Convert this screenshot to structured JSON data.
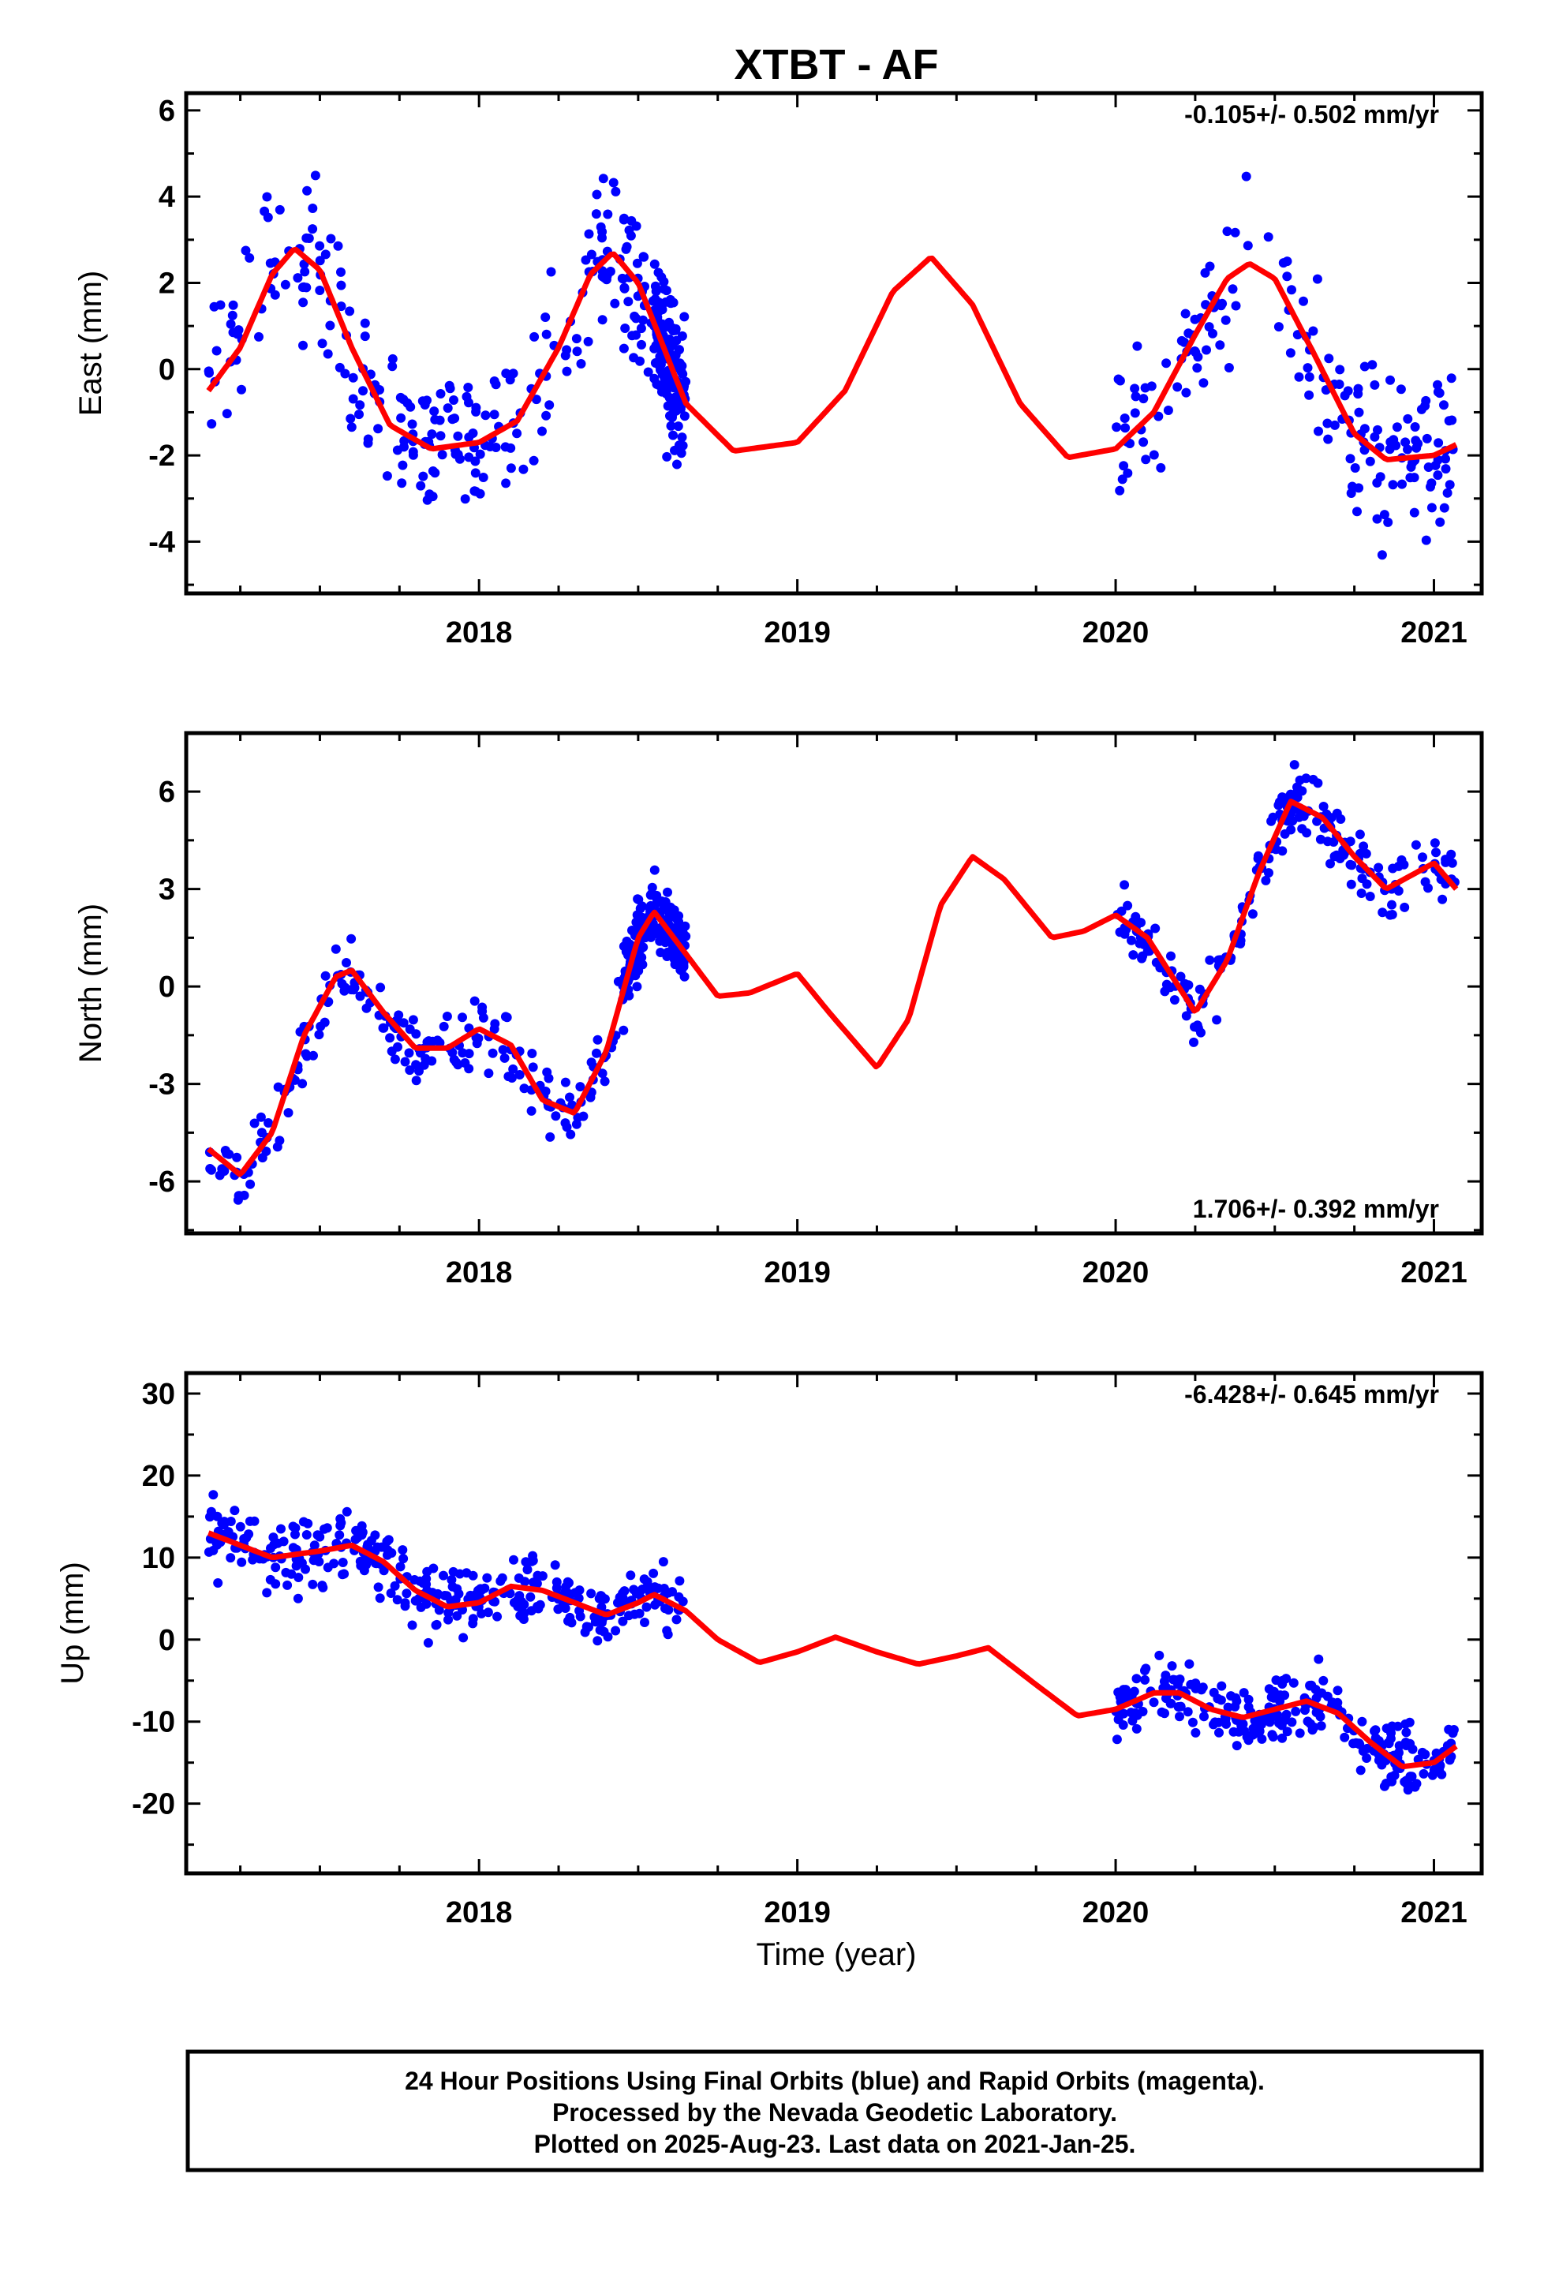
{
  "title": "XTBT - AF",
  "colors": {
    "points": "#0000ff",
    "fit": "#ff0000",
    "frame": "#000000"
  },
  "xaxis": {
    "label": "Time (year)",
    "range": [
      2017.08,
      2021.15
    ],
    "ticks": [
      "2018",
      "2019",
      "2020",
      "2021"
    ]
  },
  "chart_data": [
    {
      "type": "scatter",
      "name": "east",
      "ylabel": "East (mm)",
      "ylim": [
        -5.2,
        6.4
      ],
      "yticks": [
        6,
        4,
        2,
        0,
        -2,
        -4
      ],
      "rate": "-0.105+/- 0.502 mm/yr",
      "rate_position": "top-right",
      "fit": [
        [
          2017.15,
          -0.5
        ],
        [
          2017.25,
          0.5
        ],
        [
          2017.35,
          2.2
        ],
        [
          2017.42,
          2.8
        ],
        [
          2017.5,
          2.3
        ],
        [
          2017.6,
          0.5
        ],
        [
          2017.72,
          -1.3
        ],
        [
          2017.85,
          -1.85
        ],
        [
          2018.0,
          -1.7
        ],
        [
          2018.12,
          -1.2
        ],
        [
          2018.25,
          0.5
        ],
        [
          2018.35,
          2.2
        ],
        [
          2018.42,
          2.7
        ],
        [
          2018.5,
          2.0
        ],
        [
          2018.65,
          -0.8
        ],
        [
          2018.8,
          -1.9
        ],
        [
          2019.0,
          -1.7
        ],
        [
          2019.15,
          -0.5
        ],
        [
          2019.3,
          1.8
        ],
        [
          2019.42,
          2.6
        ],
        [
          2019.55,
          1.5
        ],
        [
          2019.7,
          -0.8
        ],
        [
          2019.85,
          -2.05
        ],
        [
          2020.0,
          -1.85
        ],
        [
          2020.12,
          -1.0
        ],
        [
          2020.25,
          0.8
        ],
        [
          2020.35,
          2.1
        ],
        [
          2020.42,
          2.45
        ],
        [
          2020.5,
          2.1
        ],
        [
          2020.62,
          0.4
        ],
        [
          2020.75,
          -1.5
        ],
        [
          2020.85,
          -2.1
        ],
        [
          2021.0,
          -2.0
        ],
        [
          2021.07,
          -1.75
        ]
      ],
      "clusters": [
        [
          2017.15,
          2017.72,
          [
            -0.5,
            0.5,
            2.2,
            2.8,
            2.3,
            0.5
          ]
        ],
        [
          2017.72,
          2018.0,
          [
            -1.0,
            -2.5,
            -3.0,
            -3.5
          ]
        ],
        [
          2018.0,
          2018.45,
          [
            -1.7,
            -1.2,
            0.5,
            1.8,
            2.2
          ]
        ],
        [
          2018.45,
          2018.62,
          [
            1.0,
            -0.5
          ]
        ],
        [
          2018.55,
          2018.65,
          [
            -1.2,
            -2.0
          ]
        ],
        [
          2020.0,
          2020.7,
          [
            -1.8,
            -1.0,
            0.8,
            2.1,
            3.2,
            2.0,
            0.5
          ]
        ],
        [
          2020.7,
          2021.07,
          [
            -1.2,
            -2.2,
            -2.2,
            -1.5,
            -1.2
          ]
        ]
      ],
      "noise": 1.3,
      "npoints": 560
    },
    {
      "type": "scatter",
      "name": "north",
      "ylabel": "North (mm)",
      "ylim": [
        -7.6,
        7.8
      ],
      "yticks": [
        6,
        3,
        0,
        -3,
        -6
      ],
      "rate": "1.706+/- 0.392 mm/yr",
      "rate_position": "bottom-right",
      "fit": [
        [
          2017.15,
          -5.0
        ],
        [
          2017.25,
          -5.8
        ],
        [
          2017.35,
          -4.5
        ],
        [
          2017.45,
          -1.5
        ],
        [
          2017.55,
          0.3
        ],
        [
          2017.6,
          0.5
        ],
        [
          2017.7,
          -0.8
        ],
        [
          2017.8,
          -1.9
        ],
        [
          2017.9,
          -1.9
        ],
        [
          2018.0,
          -1.3
        ],
        [
          2018.1,
          -1.8
        ],
        [
          2018.2,
          -3.5
        ],
        [
          2018.3,
          -3.9
        ],
        [
          2018.4,
          -2.0
        ],
        [
          2018.5,
          1.5
        ],
        [
          2018.55,
          2.3
        ],
        [
          2018.65,
          1.0
        ],
        [
          2018.75,
          -0.3
        ],
        [
          2018.85,
          -0.2
        ],
        [
          2019.0,
          0.4
        ],
        [
          2019.1,
          -0.8
        ],
        [
          2019.25,
          -2.5
        ],
        [
          2019.35,
          -1.0
        ],
        [
          2019.45,
          2.5
        ],
        [
          2019.55,
          4.0
        ],
        [
          2019.65,
          3.3
        ],
        [
          2019.8,
          1.5
        ],
        [
          2019.9,
          1.7
        ],
        [
          2020.0,
          2.2
        ],
        [
          2020.1,
          1.5
        ],
        [
          2020.25,
          -0.8
        ],
        [
          2020.35,
          0.8
        ],
        [
          2020.45,
          3.5
        ],
        [
          2020.55,
          5.7
        ],
        [
          2020.65,
          5.2
        ],
        [
          2020.75,
          4.0
        ],
        [
          2020.85,
          3.0
        ],
        [
          2021.0,
          3.8
        ],
        [
          2021.07,
          3.0
        ]
      ],
      "clusters": [
        [
          2017.15,
          2018.45,
          [
            -5.0,
            -5.5,
            -4.0,
            -1.0,
            0.3,
            -1.0,
            -2.2,
            -2.3,
            -1.8,
            -3.0,
            -5.0,
            -2.0
          ]
        ],
        [
          2018.45,
          2018.65,
          [
            1.5,
            1.8
          ]
        ],
        [
          2020.0,
          2021.07,
          [
            1.5,
            0.0,
            -1.0,
            1.5,
            4.5,
            6.5,
            5.5,
            4.5,
            3.5,
            4.0,
            4.8
          ]
        ]
      ],
      "noise": 0.75,
      "npoints": 600
    },
    {
      "type": "scatter",
      "name": "up",
      "ylabel": "Up (mm)",
      "ylim": [
        -28.5,
        32.5
      ],
      "yticks": [
        30,
        20,
        10,
        0,
        -10,
        -20
      ],
      "rate": "-6.428+/- 0.645 mm/yr",
      "rate_position": "top-right",
      "fit": [
        [
          2017.15,
          13.0
        ],
        [
          2017.25,
          11.5
        ],
        [
          2017.35,
          10.0
        ],
        [
          2017.5,
          10.8
        ],
        [
          2017.6,
          11.5
        ],
        [
          2017.7,
          9.5
        ],
        [
          2017.8,
          6.0
        ],
        [
          2017.9,
          4.0
        ],
        [
          2018.0,
          4.5
        ],
        [
          2018.1,
          6.5
        ],
        [
          2018.2,
          6.0
        ],
        [
          2018.3,
          4.5
        ],
        [
          2018.4,
          3.0
        ],
        [
          2018.5,
          4.5
        ],
        [
          2018.55,
          5.5
        ],
        [
          2018.65,
          3.5
        ],
        [
          2018.75,
          0.0
        ],
        [
          2018.88,
          -2.8
        ],
        [
          2019.0,
          -1.5
        ],
        [
          2019.12,
          0.3
        ],
        [
          2019.25,
          -1.5
        ],
        [
          2019.38,
          -3.0
        ],
        [
          2019.5,
          -2.0
        ],
        [
          2019.6,
          -1.0
        ],
        [
          2019.75,
          -5.5
        ],
        [
          2019.88,
          -9.3
        ],
        [
          2020.0,
          -8.5
        ],
        [
          2020.12,
          -6.5
        ],
        [
          2020.2,
          -6.5
        ],
        [
          2020.3,
          -8.5
        ],
        [
          2020.4,
          -9.5
        ],
        [
          2020.5,
          -8.5
        ],
        [
          2020.6,
          -7.5
        ],
        [
          2020.7,
          -9.0
        ],
        [
          2020.8,
          -12.5
        ],
        [
          2020.9,
          -15.5
        ],
        [
          2021.0,
          -15.0
        ],
        [
          2021.07,
          -13.0
        ]
      ],
      "clusters": [
        [
          2017.15,
          2018.65,
          [
            12.0,
            10.0,
            11.0,
            10.0,
            6.0,
            5.0,
            7.0,
            5.0,
            3.0,
            4.0
          ]
        ],
        [
          2020.0,
          2021.07,
          [
            -9.0,
            -6.0,
            -8.0,
            -8.0,
            -7.0,
            -9.0,
            -14.0,
            -16.0,
            -13.0
          ]
        ]
      ],
      "noise": 3.0,
      "npoints": 620
    }
  ],
  "footer": {
    "line1": "24 Hour Positions Using Final Orbits (blue) and Rapid Orbits (magenta).",
    "line2": "Processed by the Nevada Geodetic Laboratory.",
    "line3": "Plotted on 2025-Aug-23. Last data on 2021-Jan-25."
  }
}
